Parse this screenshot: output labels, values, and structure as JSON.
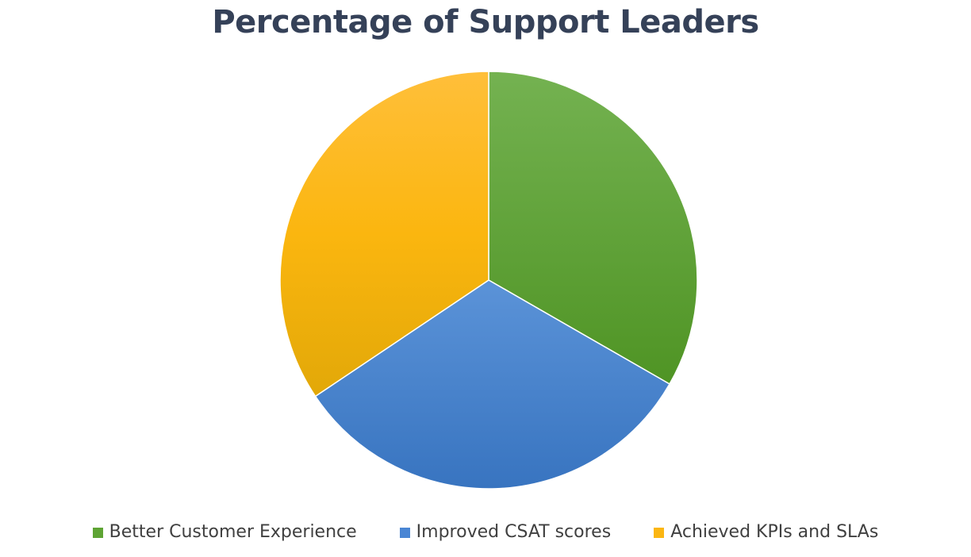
{
  "chart_data": {
    "type": "pie",
    "title": "Percentage of Support Leaders",
    "categories": [
      "Better Customer Experience",
      "Improved CSAT scores",
      "Achieved KPIs and SLAs"
    ],
    "values": [
      33.3,
      32.3,
      34.4
    ],
    "colors": [
      "#5ea434",
      "#4a86d4",
      "#fbb612"
    ],
    "start_angle_deg": 0,
    "direction": "clockwise",
    "legend_position": "bottom",
    "data_labels": false
  }
}
